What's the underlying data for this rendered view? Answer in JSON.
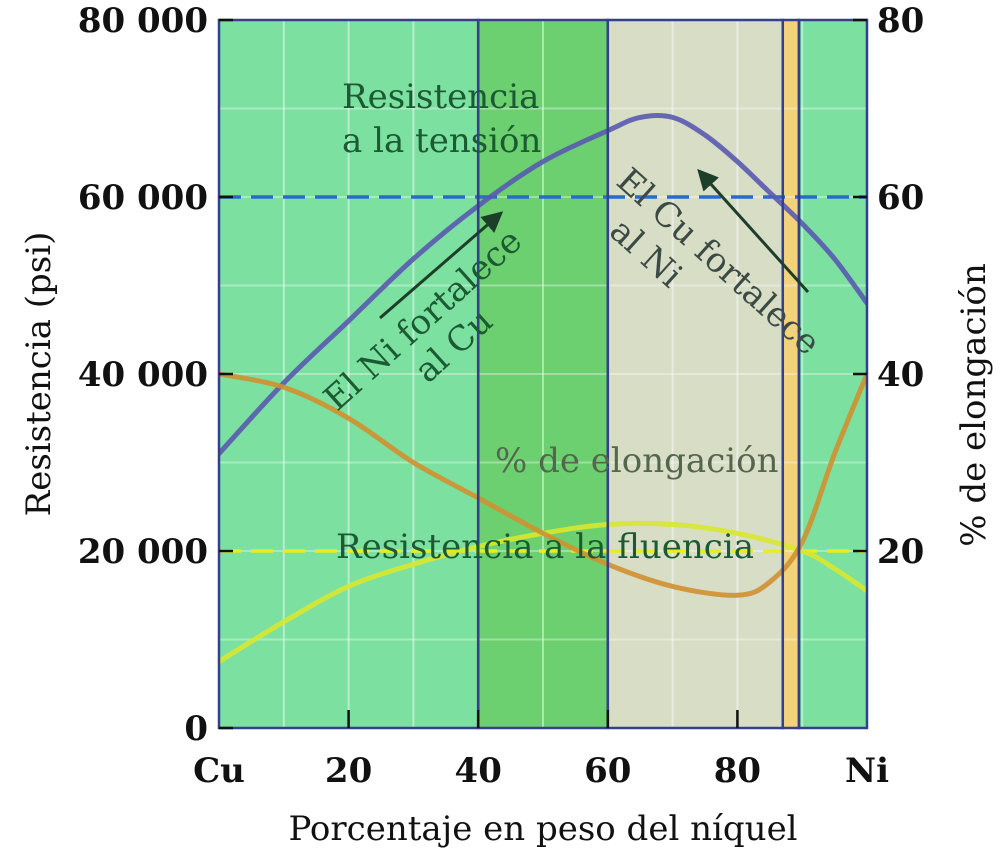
{
  "chart_data": {
    "type": "line",
    "title": "",
    "xlabel": "Porcentaje en peso del níquel",
    "ylabel_left": "Resistencia (psi)",
    "ylabel_right": "% de elongación",
    "x_ticks": [
      {
        "value": 0,
        "label": "Cu"
      },
      {
        "value": 20,
        "label": "20"
      },
      {
        "value": 40,
        "label": "40"
      },
      {
        "value": 60,
        "label": "60"
      },
      {
        "value": 80,
        "label": "80"
      },
      {
        "value": 100,
        "label": "Ni"
      }
    ],
    "y_left_ticks": [
      {
        "value": 0,
        "label": "0"
      },
      {
        "value": 20000,
        "label": "20 000"
      },
      {
        "value": 40000,
        "label": "40 000"
      },
      {
        "value": 60000,
        "label": "60 000"
      },
      {
        "value": 80000,
        "label": "80 000"
      }
    ],
    "y_right_ticks": [
      {
        "value": 20,
        "label": "20"
      },
      {
        "value": 40,
        "label": "40"
      },
      {
        "value": 60,
        "label": "60"
      },
      {
        "value": 80,
        "label": "80"
      }
    ],
    "xlim": [
      0,
      100
    ],
    "ylim_left": [
      0,
      80000
    ],
    "ylim_right": [
      0,
      80
    ],
    "grid": true,
    "series": [
      {
        "name": "Resistencia a la tensión",
        "axis": "left",
        "color": "#5a5ab0",
        "x": [
          0,
          10,
          20,
          30,
          40,
          50,
          60,
          65,
          70,
          75,
          80,
          85,
          90,
          95,
          100
        ],
        "y": [
          31000,
          39000,
          46000,
          53000,
          59000,
          64000,
          67500,
          69000,
          69000,
          67000,
          64000,
          60500,
          57000,
          53000,
          48000
        ]
      },
      {
        "name": "Resistencia a la fluencia",
        "axis": "left",
        "color": "#d8e830",
        "x": [
          0,
          10,
          20,
          30,
          40,
          50,
          60,
          70,
          80,
          90,
          95,
          100
        ],
        "y": [
          7500,
          12000,
          16000,
          18500,
          20500,
          22000,
          23000,
          23000,
          22000,
          20000,
          18000,
          15500
        ]
      },
      {
        "name": "% de elongación",
        "axis": "right",
        "color": "#d09030",
        "x": [
          0,
          10,
          20,
          30,
          40,
          50,
          60,
          70,
          80,
          85,
          90,
          95,
          100
        ],
        "y": [
          40,
          38.5,
          35,
          30,
          26,
          22,
          18.5,
          16,
          15,
          16.5,
          21,
          31,
          40
        ]
      }
    ],
    "reference_lines": [
      {
        "axis": "left",
        "value": 60000,
        "style": "dashed",
        "color": "#2a6ad0"
      },
      {
        "axis": "left",
        "value": 20000,
        "style": "dashed",
        "color": "#e6ee20"
      }
    ],
    "regions": [
      {
        "x0": 0,
        "x1": 40,
        "color": "#7ce0a0"
      },
      {
        "x0": 40,
        "x1": 60,
        "color": "#6cd070"
      },
      {
        "x0": 60,
        "x1": 87,
        "color": "#d8ddc6"
      },
      {
        "x0": 87,
        "x1": 89.5,
        "color": "#f2d27a"
      },
      {
        "x0": 89.5,
        "x1": 100,
        "color": "#7ce0a0"
      }
    ],
    "annotations": [
      {
        "id": "tension",
        "lines": [
          "Resistencia",
          "a la tensión"
        ]
      },
      {
        "id": "ni-cu",
        "lines": [
          "El Ni fortalece",
          "al Cu"
        ]
      },
      {
        "id": "cu-ni",
        "lines": [
          "El Cu fortalece",
          "al Ni"
        ]
      },
      {
        "id": "elong",
        "lines": [
          "% de elongación"
        ]
      },
      {
        "id": "fluencia",
        "lines": [
          "Resistencia a la fluencia"
        ]
      }
    ]
  }
}
